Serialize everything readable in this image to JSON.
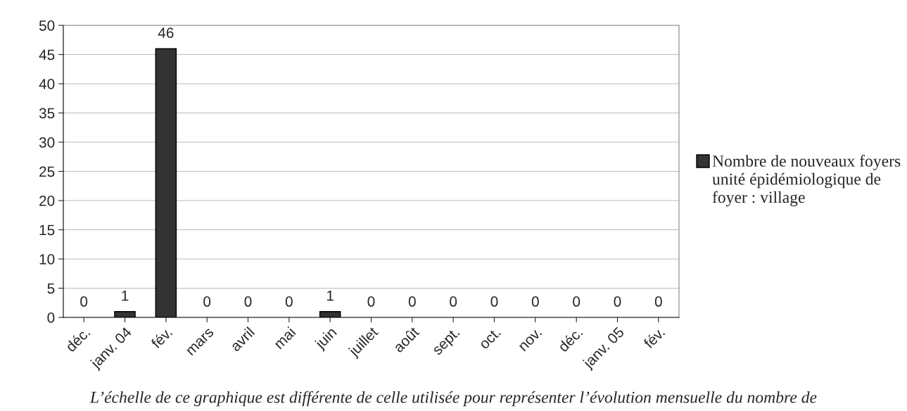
{
  "chart_data": {
    "type": "bar",
    "categories": [
      "déc.",
      "janv. 04",
      "fév.",
      "mars",
      "avril",
      "mai",
      "juin",
      "juillet",
      "août",
      "sept.",
      "oct.",
      "nov.",
      "déc.",
      "janv. 05",
      "fév."
    ],
    "series": [
      {
        "name": "Nombre de nouveaux foyers unité épidémiologique de foyer : village",
        "color": "#333333",
        "values": [
          0,
          1,
          46,
          0,
          0,
          0,
          1,
          0,
          0,
          0,
          0,
          0,
          0,
          0,
          0
        ]
      }
    ],
    "ylim": [
      0,
      50
    ],
    "yticks": [
      0,
      5,
      10,
      15,
      20,
      25,
      30,
      35,
      40,
      45,
      50
    ],
    "grid": "y",
    "legend": "right",
    "data_labels": true,
    "annotations": [
      "L’échelle de ce graphique est différente de celle utilisée pour représenter l’évolution mensuelle du nombre de"
    ]
  }
}
